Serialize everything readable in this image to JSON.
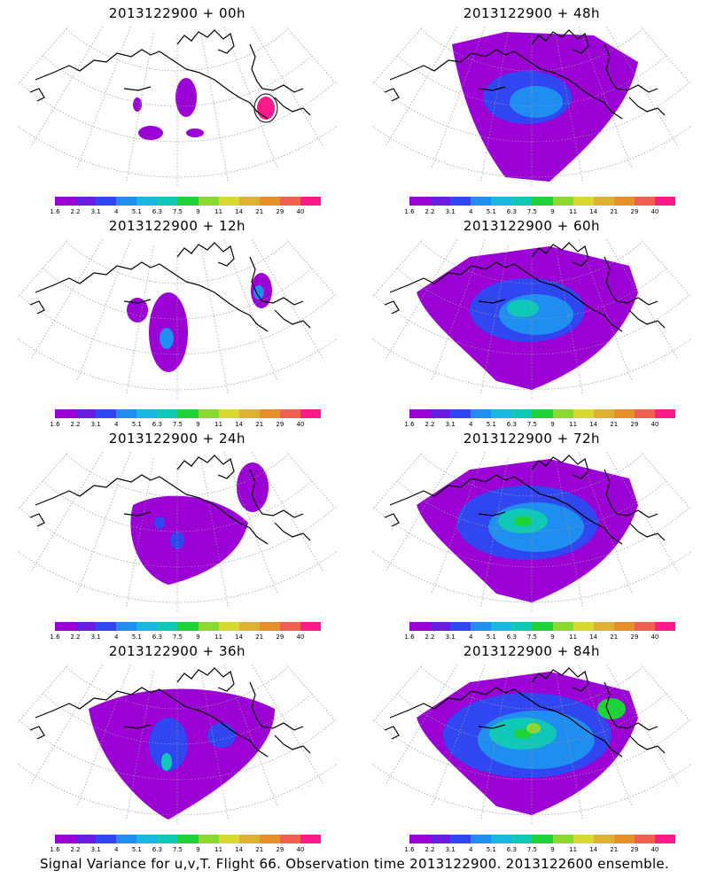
{
  "caption": "Signal Variance for u,v,T. Flight 66. Observation time 2013122900. 2013122600 ensemble.",
  "colorbar": {
    "labels": [
      "1.6",
      "2.2",
      "3.1",
      "4",
      "5.1",
      "6.3",
      "7.5",
      "9",
      "11",
      "14",
      "21",
      "29",
      "40"
    ],
    "colors": [
      "#9b00d4",
      "#6a1ce0",
      "#2f46f0",
      "#1f8ef0",
      "#1ab8e0",
      "#10c8b8",
      "#1ed23a",
      "#8ad830",
      "#d8d82e",
      "#e0b030",
      "#e89028",
      "#f06050",
      "#ff1a8c"
    ]
  },
  "panels": [
    {
      "title": "2013122900 + 00h",
      "level": 0
    },
    {
      "title": "2013122900 + 48h",
      "level": 4
    },
    {
      "title": "2013122900 + 12h",
      "level": 1
    },
    {
      "title": "2013122900 + 60h",
      "level": 5
    },
    {
      "title": "2013122900 + 24h",
      "level": 2
    },
    {
      "title": "2013122900 + 72h",
      "level": 6
    },
    {
      "title": "2013122900 + 36h",
      "level": 3
    },
    {
      "title": "2013122900 + 84h",
      "level": 7
    }
  ]
}
